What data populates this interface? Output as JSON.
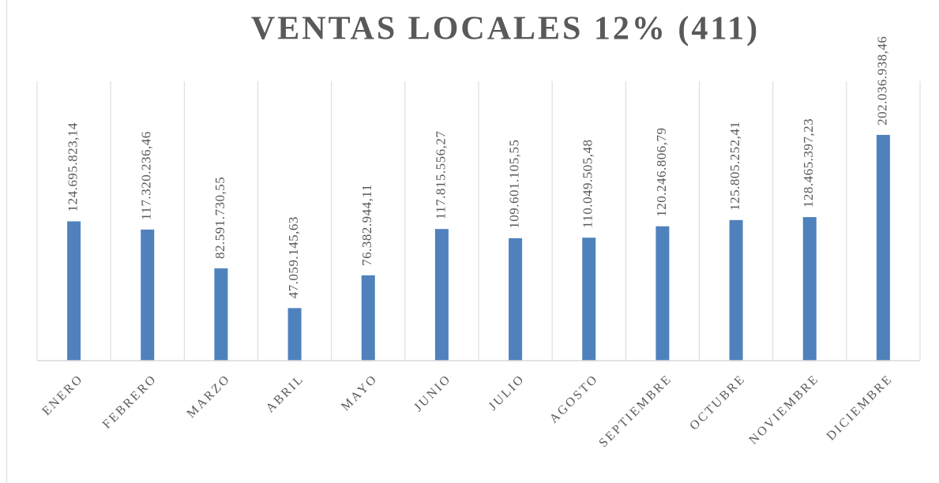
{
  "chart_data": {
    "type": "bar",
    "title": "VENTAS LOCALES 12% (411)",
    "categories": [
      "ENERO",
      "FEBRERO",
      "MARZO",
      "ABRIL",
      "MAYO",
      "JUNIO",
      "JULIO",
      "AGOSTO",
      "SEPTIEMBRE",
      "OCTUBRE",
      "NOVIEMBRE",
      "DICIEMBRE"
    ],
    "values": [
      124695823.14,
      117320236.46,
      82591730.55,
      47059145.63,
      76382944.11,
      117815556.27,
      109601105.55,
      110049505.48,
      120246806.79,
      125805252.41,
      128465397.23,
      202036938.46
    ],
    "value_labels": [
      "124.695.823,14",
      "117.320.236,46",
      "82.591.730,55",
      "47.059.145,63",
      "76.382.944,11",
      "117.815.556,27",
      "109.601.105,55",
      "110.049.505,48",
      "120.246.806,79",
      "125.805.252,41",
      "128.465.397,23",
      "202.036.938,46"
    ],
    "color": "#4f81bd",
    "ylim": [
      0,
      250000000
    ]
  }
}
